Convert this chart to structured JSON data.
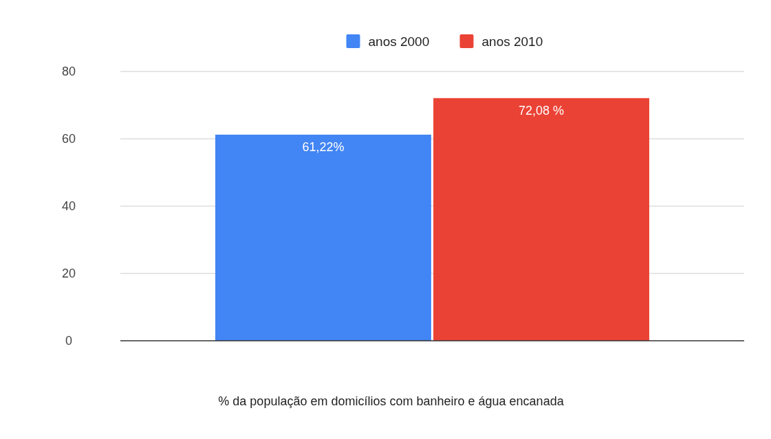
{
  "chart_data": {
    "type": "bar",
    "categories": [
      null
    ],
    "xlabel": "% da população em domicílios com banheiro e água encanada",
    "series": [
      {
        "name": "anos 2000",
        "color": "#4285f4",
        "values": [
          61.22
        ],
        "value_labels": [
          "61,22%"
        ]
      },
      {
        "name": "anos 2010",
        "color": "#ea4335",
        "values": [
          72.08
        ],
        "value_labels": [
          "72,08 %"
        ]
      }
    ],
    "ylim": [
      0,
      80
    ],
    "yticks": [
      0,
      20,
      40,
      60,
      80
    ],
    "grid": "y",
    "legend": "top"
  }
}
